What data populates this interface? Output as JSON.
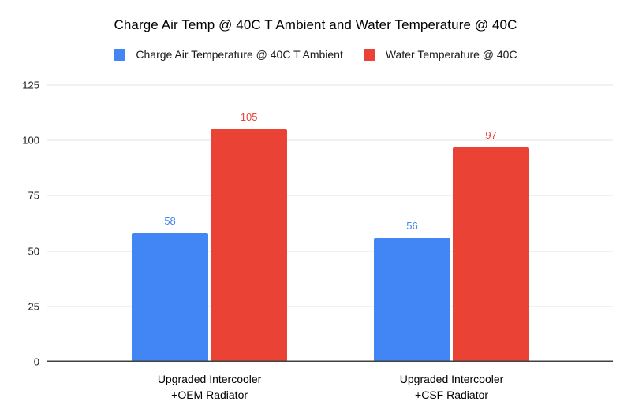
{
  "chart_data": {
    "type": "bar",
    "title": "Charge Air Temp @ 40C T Ambient and Water Temperature @ 40C",
    "categories": [
      "Upgraded Intercooler\n+OEM Radiator",
      "Upgraded Intercooler\n+CSF Radiator"
    ],
    "series": [
      {
        "key": "charge-air-temperature",
        "name": "Charge Air Temperature @ 40C T Ambient",
        "color": "#4285F4",
        "values": [
          58,
          56
        ]
      },
      {
        "key": "water-temperature",
        "name": "Water Temperature @ 40C",
        "color": "#EA4335",
        "values": [
          105,
          97
        ]
      }
    ],
    "yticks": [
      0,
      25,
      50,
      75,
      100,
      125
    ],
    "ylim": [
      0,
      125
    ],
    "xlabel": "",
    "ylabel": "",
    "grid": true,
    "legend_position": "top",
    "data_labels": true
  },
  "colors": {
    "background": "#ffffff",
    "gridline": "#e3e3e3",
    "axis_line": "#424242",
    "title_text": "#000000"
  }
}
